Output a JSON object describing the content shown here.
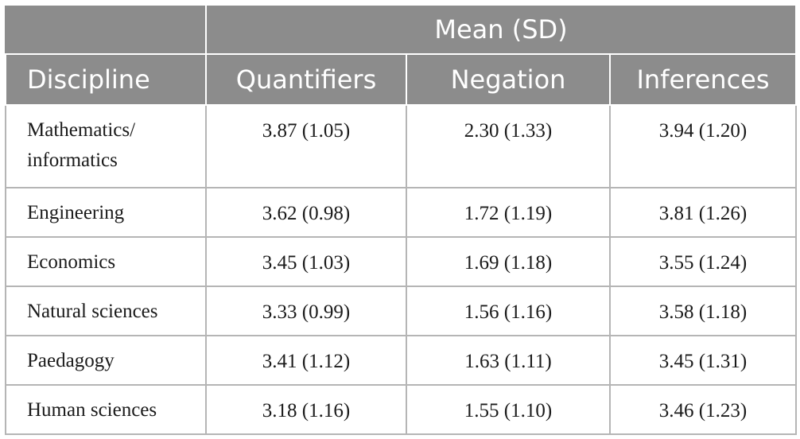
{
  "header": {
    "group_label": "Mean (SD)",
    "col_discipline": "Discipline",
    "col_quantifiers": "Quantifiers",
    "col_negation": "Negation",
    "col_inferences": "Inferences"
  },
  "rows": [
    {
      "discipline": "Mathematics/\ninformatics",
      "quantifiers": "3.87 (1.05)",
      "negation": "2.30 (1.33)",
      "inferences": "3.94 (1.20)"
    },
    {
      "discipline": "Engineering",
      "quantifiers": "3.62 (0.98)",
      "negation": "1.72 (1.19)",
      "inferences": "3.81 (1.26)"
    },
    {
      "discipline": "Economics",
      "quantifiers": "3.45 (1.03)",
      "negation": "1.69 (1.18)",
      "inferences": "3.55 (1.24)"
    },
    {
      "discipline": "Natural sciences",
      "quantifiers": "3.33 (0.99)",
      "negation": "1.56 (1.16)",
      "inferences": "3.58 (1.18)"
    },
    {
      "discipline": "Paedagogy",
      "quantifiers": "3.41 (1.12)",
      "negation": "1.63 (1.11)",
      "inferences": "3.45 (1.31)"
    },
    {
      "discipline": "Human sciences",
      "quantifiers": "3.18 (1.16)",
      "negation": "1.55 (1.10)",
      "inferences": "3.46 (1.23)"
    }
  ],
  "colors": {
    "header_bg": "#8c8c8c",
    "header_text": "#ffffff",
    "grid": "#b5b5b5"
  }
}
